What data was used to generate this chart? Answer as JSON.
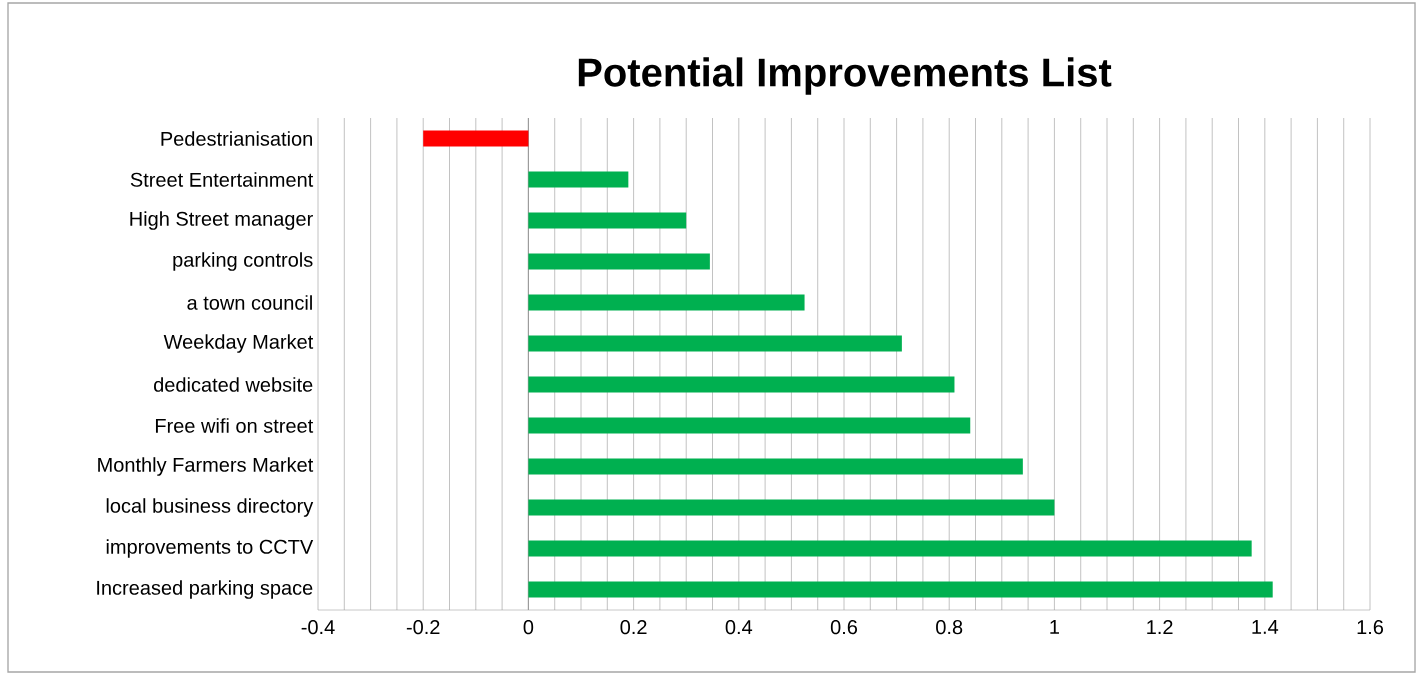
{
  "chart_data": {
    "type": "bar",
    "orientation": "horizontal",
    "title": "Potential Improvements List",
    "categories": [
      "Pedestrianisation",
      "Street Entertainment",
      "High Street manager",
      "parking controls",
      "a town council",
      "Weekday Market",
      "dedicated website",
      "Free wifi on street",
      "Monthly Farmers Market",
      "local business directory",
      "improvements to CCTV",
      "Increased parking space"
    ],
    "values": [
      -0.2,
      0.19,
      0.3,
      0.345,
      0.525,
      0.71,
      0.81,
      0.84,
      0.94,
      1.0,
      1.375,
      1.415
    ],
    "colors": [
      "#ff0000",
      "#00b050",
      "#00b050",
      "#00b050",
      "#00b050",
      "#00b050",
      "#00b050",
      "#00b050",
      "#00b050",
      "#00b050",
      "#00b050",
      "#00b050"
    ],
    "xlim": [
      -0.4,
      1.6
    ],
    "xticks": [
      -0.4,
      {
        "value": -0.35,
        "label": null
      },
      {
        "value": -0.3,
        "label": null
      },
      {
        "value": -0.25,
        "label": null
      },
      -0.2,
      {
        "value": -0.15,
        "label": null
      },
      {
        "value": -0.1,
        "label": null
      },
      {
        "value": -0.05,
        "label": null
      },
      0,
      {
        "value": 0.05,
        "label": null
      },
      {
        "value": 0.1,
        "label": null
      },
      {
        "value": 0.15,
        "label": null
      },
      0.2,
      {
        "value": 0.25,
        "label": null
      },
      {
        "value": 0.3,
        "label": null
      },
      {
        "value": 0.35,
        "label": null
      },
      0.4,
      {
        "value": 0.45,
        "label": null
      },
      {
        "value": 0.5,
        "label": null
      },
      {
        "value": 0.55,
        "label": null
      },
      0.6,
      {
        "value": 0.65,
        "label": null
      },
      {
        "value": 0.7,
        "label": null
      },
      {
        "value": 0.75,
        "label": null
      },
      0.8,
      {
        "value": 0.85,
        "label": null
      },
      {
        "value": 0.9,
        "label": null
      },
      {
        "value": 0.95,
        "label": null
      },
      1,
      {
        "value": 1.05,
        "label": null
      },
      {
        "value": 1.1,
        "label": null
      },
      {
        "value": 1.15,
        "label": null
      },
      1.2,
      {
        "value": 1.25,
        "label": null
      },
      {
        "value": 1.3,
        "label": null
      },
      {
        "value": 1.35,
        "label": null
      },
      1.4,
      {
        "value": 1.45,
        "label": null
      },
      {
        "value": 1.5,
        "label": null
      },
      {
        "value": 1.55,
        "label": null
      },
      1.6
    ],
    "grid": "x"
  }
}
